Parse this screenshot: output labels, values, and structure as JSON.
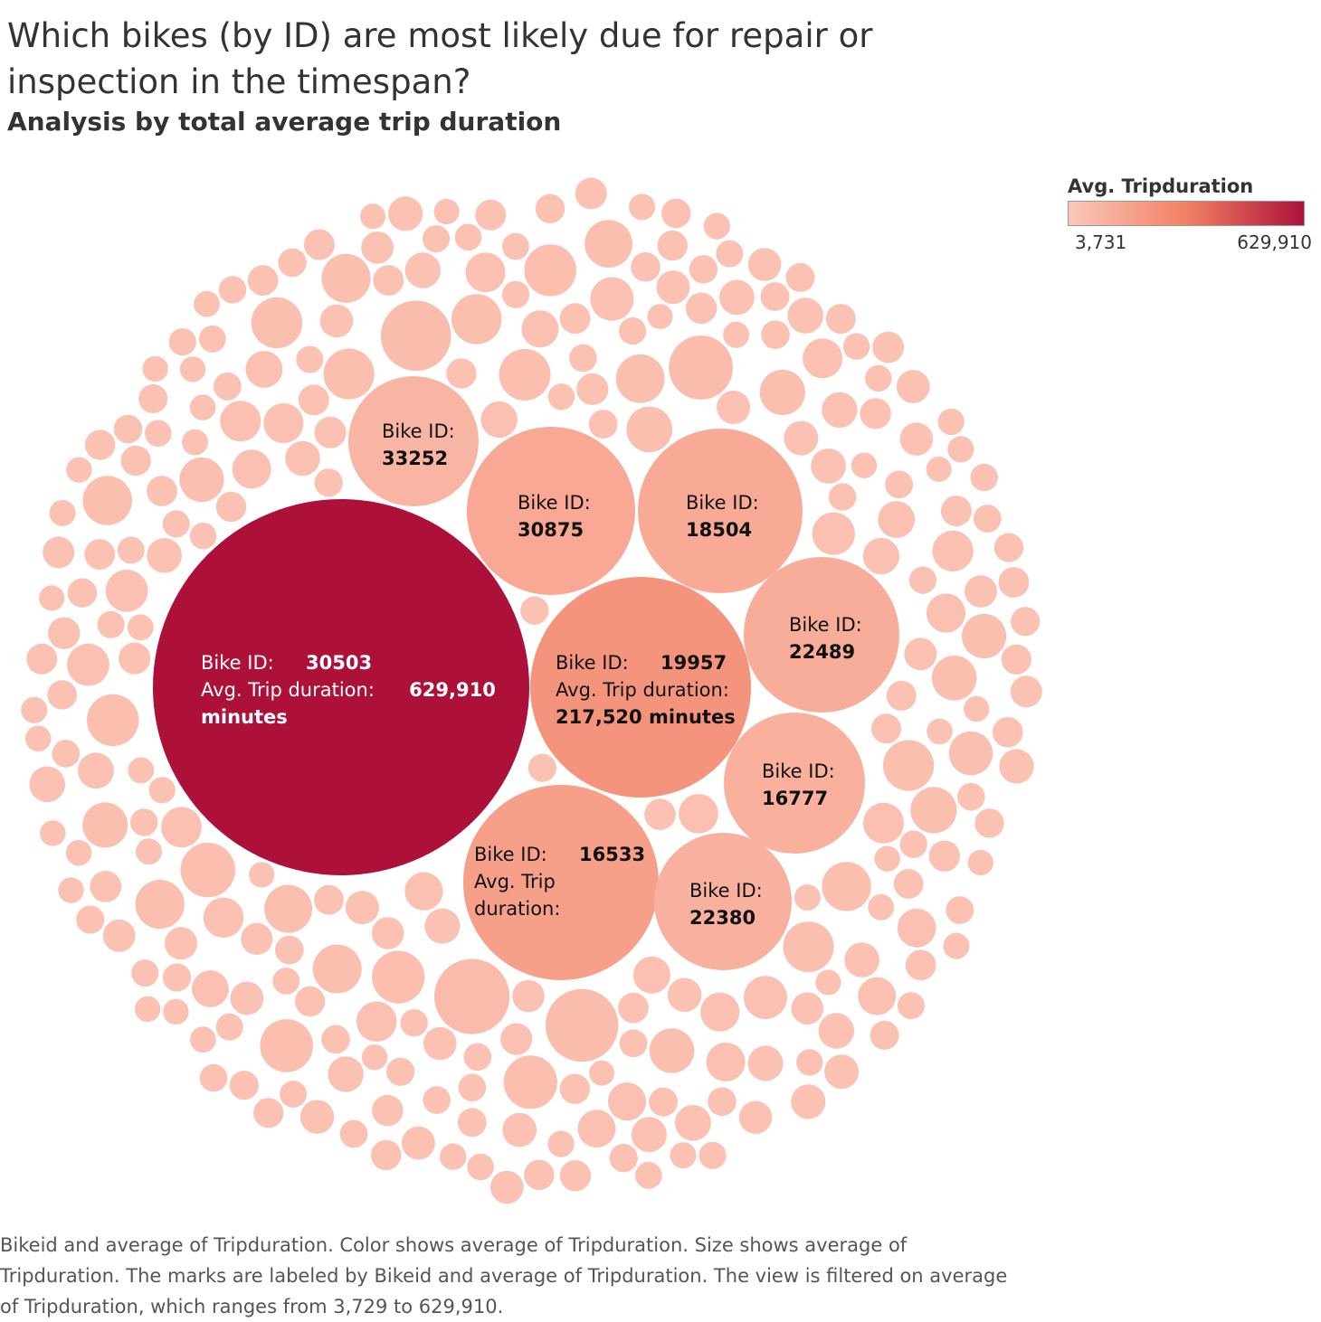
{
  "title": "Which bikes (by ID) are most likely due for repair or inspection in the timespan?",
  "subtitle": "Analysis by total average trip duration",
  "legend": {
    "title": "Avg. Tripduration",
    "min_label": "3,731",
    "max_label": "629,910",
    "min_color": "#fcc8bb",
    "mid_color": "#f28063",
    "max_color": "#ad1139"
  },
  "caption": "Bikeid and average of Tripduration.  Color shows average of Tripduration.  Size shows average of Tripduration.  The marks are labeled by Bikeid and average of Tripduration. The view is filtered on average of Tripduration, which ranges from 3,729 to 629,910.",
  "chart_data": {
    "type": "packed-bubble",
    "measure": "Avg. Tripduration",
    "color_range": [
      3731,
      629910
    ],
    "filter_range": [
      3729,
      629910
    ],
    "labeled_bubbles": [
      {
        "bike_id": "30503",
        "value": 629910,
        "label_lines": [
          [
            "Bike ID:",
            "30503"
          ],
          [
            "Avg. Trip duration:",
            "629,910"
          ],
          [
            "minutes",
            ""
          ]
        ]
      },
      {
        "bike_id": "19957",
        "value": 217520,
        "label_lines": [
          [
            "Bike ID:",
            "19957"
          ],
          [
            "Avg. Trip duration:",
            ""
          ],
          [
            "217,520 minutes",
            ""
          ]
        ]
      },
      {
        "bike_id": "16533",
        "value": null,
        "label_lines": [
          [
            "Bike ID:",
            "16533"
          ],
          [
            "Avg. Trip",
            ""
          ],
          [
            "duration:",
            ""
          ]
        ]
      },
      {
        "bike_id": "30875",
        "value": null,
        "label_lines": [
          [
            "Bike ID:",
            ""
          ],
          [
            "30875",
            ""
          ]
        ]
      },
      {
        "bike_id": "18504",
        "value": null,
        "label_lines": [
          [
            "Bike ID:",
            ""
          ],
          [
            "18504",
            ""
          ]
        ]
      },
      {
        "bike_id": "22489",
        "value": null,
        "label_lines": [
          [
            "Bike ID:",
            ""
          ],
          [
            "22489",
            ""
          ]
        ]
      },
      {
        "bike_id": "16777",
        "value": null,
        "label_lines": [
          [
            "Bike ID:",
            ""
          ],
          [
            "16777",
            ""
          ]
        ]
      },
      {
        "bike_id": "22380",
        "value": null,
        "label_lines": [
          [
            "Bike ID:",
            ""
          ],
          [
            "22380",
            ""
          ]
        ]
      },
      {
        "bike_id": "33252",
        "value": null,
        "label_lines": [
          [
            "Bike ID:",
            ""
          ],
          [
            "33252",
            ""
          ]
        ]
      }
    ],
    "unlabeled_bubble_count": 420
  }
}
